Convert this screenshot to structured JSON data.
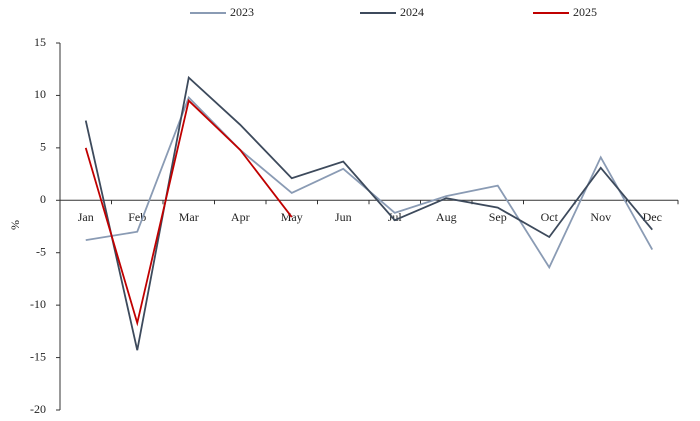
{
  "chart_data": {
    "type": "line",
    "y_label": "%",
    "categories": [
      "Jan",
      "Feb",
      "Mar",
      "Apr",
      "May",
      "Jun",
      "Jul",
      "Aug",
      "Sep",
      "Oct",
      "Nov",
      "Dec"
    ],
    "series": [
      {
        "name": "2023",
        "color": "#8a9bb4",
        "values": [
          -3.8,
          -3.0,
          9.8,
          4.8,
          0.7,
          3.0,
          -1.2,
          0.4,
          1.4,
          -6.4,
          4.1,
          -4.7
        ]
      },
      {
        "name": "2024",
        "color": "#3d4a5c",
        "values": [
          7.6,
          -14.3,
          11.7,
          7.2,
          2.1,
          3.7,
          -1.9,
          0.2,
          -0.7,
          -3.5,
          3.1,
          -2.8
        ]
      },
      {
        "name": "2025",
        "color": "#c00000",
        "values": [
          5.0,
          -11.7,
          9.5,
          4.8,
          -1.6,
          null,
          null,
          null,
          null,
          null,
          null,
          null
        ]
      }
    ],
    "ylim": [
      -20,
      15
    ],
    "yticks": [
      -20,
      -15,
      -10,
      -5,
      0,
      5,
      10,
      15
    ],
    "legend": "top"
  }
}
